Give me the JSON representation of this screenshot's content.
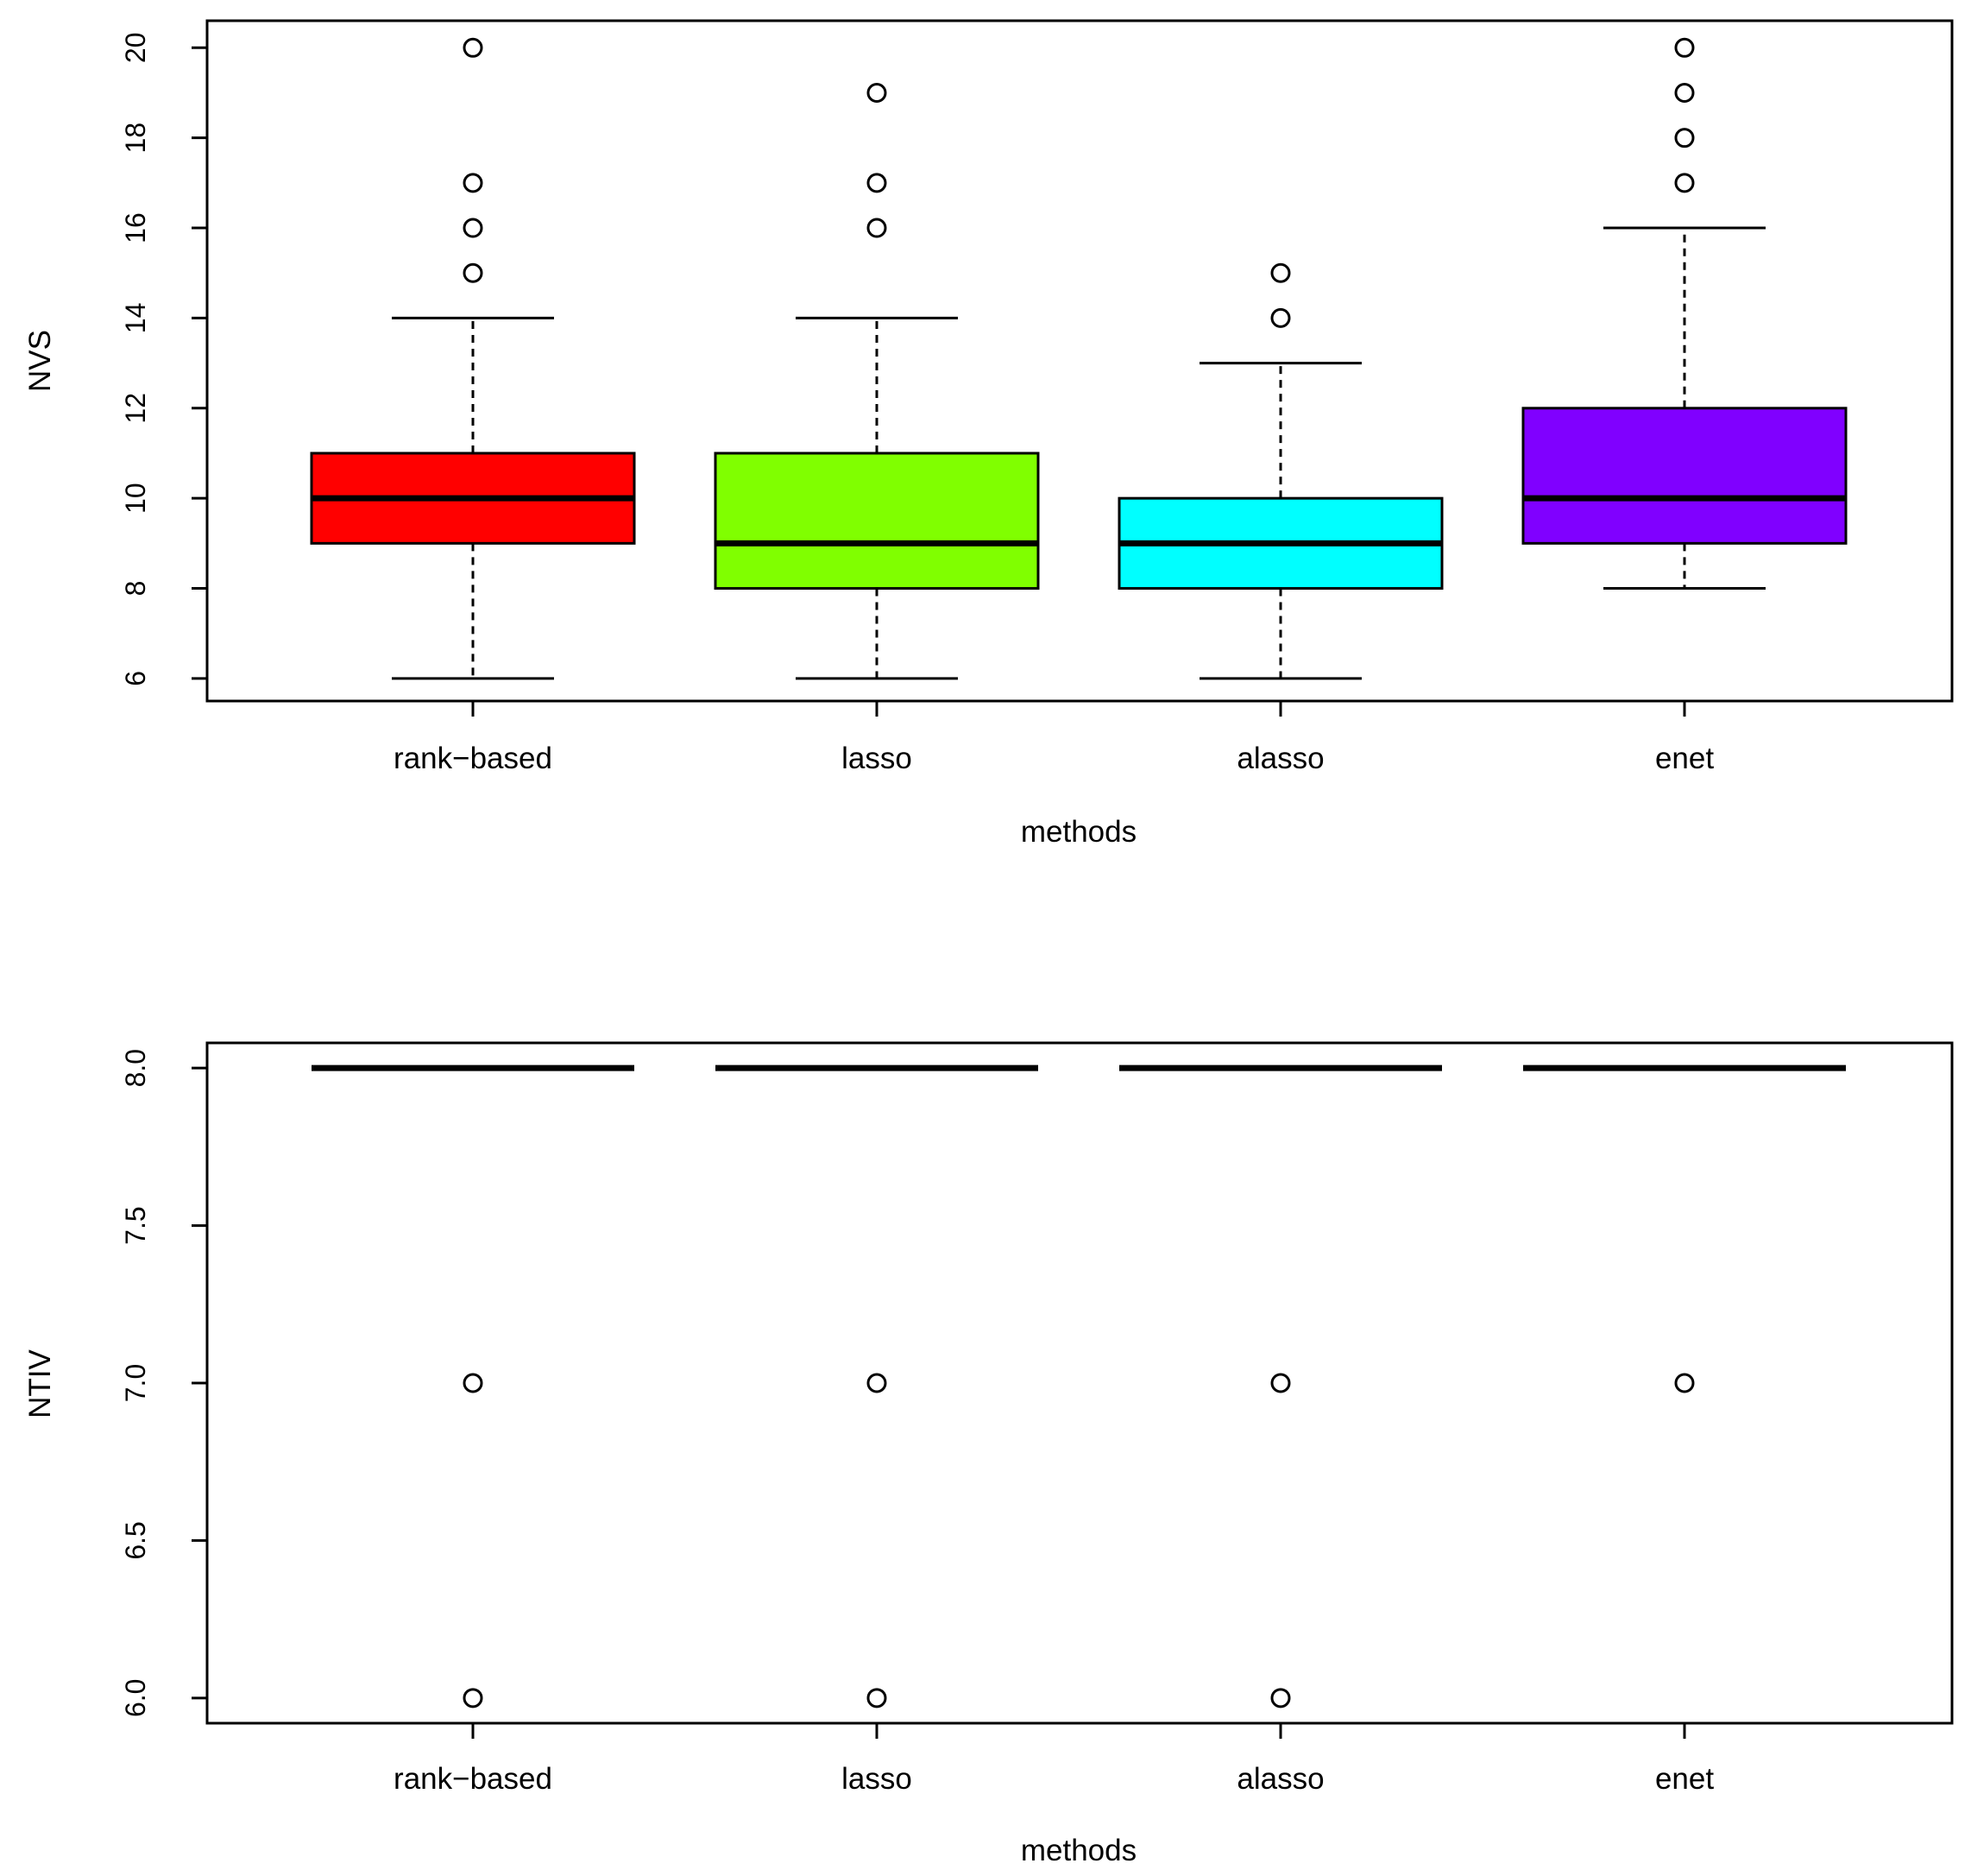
{
  "chart_data": [
    {
      "type": "box",
      "xlabel": "methods",
      "ylabel": "NVS",
      "ylim": [
        5.5,
        20.6
      ],
      "yticks": [
        6,
        8,
        10,
        12,
        14,
        16,
        18,
        20
      ],
      "ytick_labels": [
        "6",
        "8",
        "10",
        "12",
        "14",
        "16",
        "18",
        "20"
      ],
      "categories": [
        "rank−based",
        "lasso",
        "alasso",
        "enet"
      ],
      "boxes": [
        {
          "category": "rank−based",
          "color": "#ff0000",
          "whisker_low": 6,
          "q1": 9,
          "median": 10,
          "q3": 11,
          "whisker_high": 14,
          "outliers": [
            15,
            16,
            17,
            20
          ]
        },
        {
          "category": "lasso",
          "color": "#80ff00",
          "whisker_low": 6,
          "q1": 8,
          "median": 9,
          "q3": 11,
          "whisker_high": 14,
          "outliers": [
            16,
            17,
            19
          ]
        },
        {
          "category": "alasso",
          "color": "#00ffff",
          "whisker_low": 6,
          "q1": 8,
          "median": 9,
          "q3": 10,
          "whisker_high": 13,
          "outliers": [
            14,
            15
          ]
        },
        {
          "category": "enet",
          "color": "#8000ff",
          "whisker_low": 8,
          "q1": 9,
          "median": 10,
          "q3": 12,
          "whisker_high": 16,
          "outliers": [
            17,
            18,
            19,
            20
          ]
        }
      ]
    },
    {
      "type": "box",
      "xlabel": "methods",
      "ylabel": "NTIV",
      "ylim": [
        5.92,
        8.08
      ],
      "yticks": [
        6.0,
        6.5,
        7.0,
        7.5,
        8.0
      ],
      "ytick_labels": [
        "6.0",
        "6.5",
        "7.0",
        "7.5",
        "8.0"
      ],
      "categories": [
        "rank−based",
        "lasso",
        "alasso",
        "enet"
      ],
      "boxes": [
        {
          "category": "rank−based",
          "color": "#ff0000",
          "whisker_low": 8,
          "q1": 8,
          "median": 8,
          "q3": 8,
          "whisker_high": 8,
          "outliers": [
            6,
            7
          ]
        },
        {
          "category": "lasso",
          "color": "#80ff00",
          "whisker_low": 8,
          "q1": 8,
          "median": 8,
          "q3": 8,
          "whisker_high": 8,
          "outliers": [
            6,
            7
          ]
        },
        {
          "category": "alasso",
          "color": "#00ffff",
          "whisker_low": 8,
          "q1": 8,
          "median": 8,
          "q3": 8,
          "whisker_high": 8,
          "outliers": [
            6,
            7
          ]
        },
        {
          "category": "enet",
          "color": "#8000ff",
          "whisker_low": 8,
          "q1": 8,
          "median": 8,
          "q3": 8,
          "whisker_high": 8,
          "outliers": [
            7
          ]
        }
      ]
    }
  ]
}
